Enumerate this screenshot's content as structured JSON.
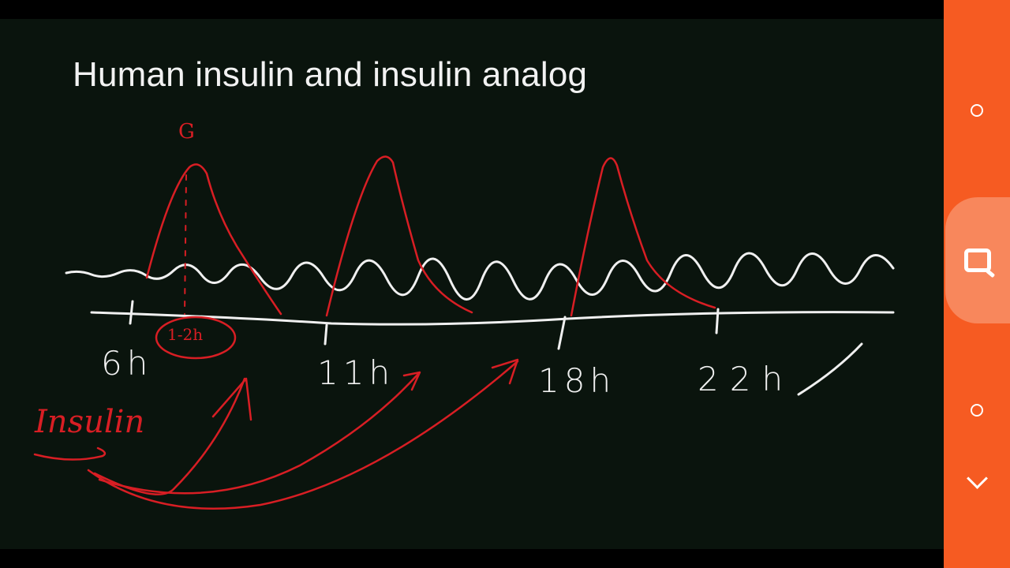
{
  "slide": {
    "title": "Human insulin and insulin analog",
    "glucose_marker": "G",
    "duration_note": "1-2h",
    "insulin_label": "Insulin",
    "time_labels": [
      "6h",
      "11h",
      "18h",
      "22h"
    ]
  },
  "side_controls": {
    "top_icon": "small-circle-icon",
    "middle_icon": "search-icon",
    "lower_icon": "small-circle-icon",
    "bottom_icon": "chevron-down-icon"
  },
  "colors": {
    "board": "#0a140d",
    "chalk": "#f0f0f0",
    "ink_red": "#d81e24",
    "sidebar": "#f65b22",
    "sidebar_highlight": "#f8875c"
  }
}
